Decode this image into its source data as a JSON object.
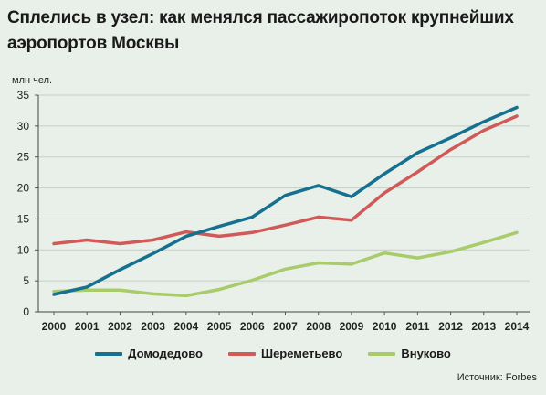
{
  "title": "Сплелись в узел: как менялся пассажиропоток крупнейших аэропортов Москвы",
  "unit": "млн чел.",
  "source": "Источник: Forbes",
  "colors": {
    "background": "#e9f0ea",
    "grid": "#c3cfc5",
    "domodedovo": "#15718f",
    "sheremetyevo": "#d05a58",
    "vnukovo": "#a9cc6a"
  },
  "chart_data": {
    "type": "line",
    "title": "Сплелись в узел: как менялся пассажиропоток крупнейших аэропортов Москвы",
    "ylabel": "млн чел.",
    "xlabel": "",
    "ylim": [
      0,
      35
    ],
    "yticks": [
      0,
      5,
      10,
      15,
      20,
      25,
      30,
      35
    ],
    "grid": true,
    "legend_position": "bottom",
    "categories": [
      "2000",
      "2001",
      "2002",
      "2003",
      "2004",
      "2005",
      "2006",
      "2007",
      "2008",
      "2009",
      "2010",
      "2011",
      "2012",
      "2013",
      "2014"
    ],
    "series": [
      {
        "name": "Домодедово",
        "color": "#15718f",
        "values": [
          2.8,
          4.0,
          6.8,
          9.4,
          12.2,
          13.8,
          15.3,
          18.8,
          20.4,
          18.6,
          22.3,
          25.7,
          28.1,
          30.7,
          33.0
        ]
      },
      {
        "name": "Шереметьево",
        "color": "#d05a58",
        "values": [
          11.0,
          11.6,
          11.0,
          11.6,
          12.9,
          12.2,
          12.8,
          14.0,
          15.3,
          14.8,
          19.2,
          22.6,
          26.2,
          29.3,
          31.6
        ]
      },
      {
        "name": "Внуково",
        "color": "#a9cc6a",
        "values": [
          3.3,
          3.5,
          3.5,
          2.9,
          2.6,
          3.6,
          5.1,
          6.9,
          7.9,
          7.7,
          9.5,
          8.7,
          9.7,
          11.2,
          12.8
        ]
      }
    ]
  }
}
